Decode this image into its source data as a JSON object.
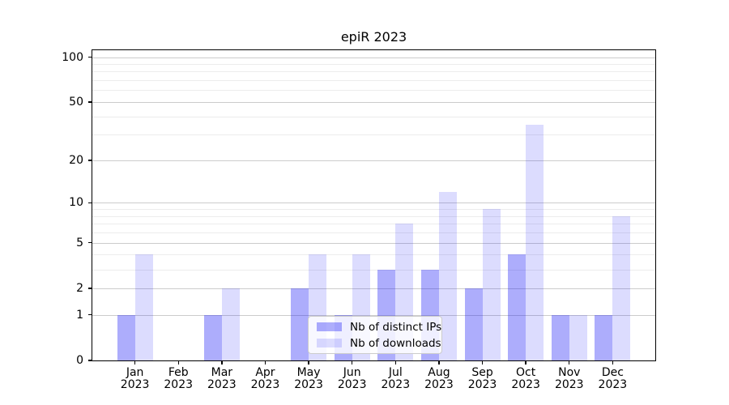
{
  "title": "epiR 2023",
  "chart_data": {
    "type": "bar",
    "title": "epiR 2023",
    "categories": [
      "Jan",
      "Feb",
      "Mar",
      "Apr",
      "May",
      "Jun",
      "Jul",
      "Aug",
      "Sep",
      "Oct",
      "Nov",
      "Dec"
    ],
    "year_label": "2023",
    "series": [
      {
        "name": "Nb of distinct IPs",
        "color": "rgba(20,20,245,0.35)",
        "values": [
          1,
          0,
          1,
          0,
          2,
          1,
          3,
          3,
          2,
          4,
          1,
          1
        ]
      },
      {
        "name": "Nb of downloads",
        "color": "rgba(20,20,245,0.15)",
        "values": [
          4,
          0,
          2,
          0,
          4,
          4,
          7,
          12,
          9,
          35,
          1,
          8
        ]
      }
    ],
    "y_scale": "log1p",
    "y_axis_ticks": [
      0,
      1,
      2,
      5,
      10,
      20,
      50,
      100
    ],
    "y_minor_gridlines": [
      3,
      4,
      6,
      7,
      8,
      9,
      30,
      40,
      60,
      70,
      80,
      90
    ],
    "ylim": [
      0,
      113
    ],
    "xlabel": "",
    "ylabel": "",
    "grid": "horizontal",
    "legend_position": "lower center"
  },
  "colors": {
    "grid_major": "#cccccc",
    "grid_minor": "#ececec",
    "axis": "#000000",
    "legend_border": "#cccccc"
  }
}
